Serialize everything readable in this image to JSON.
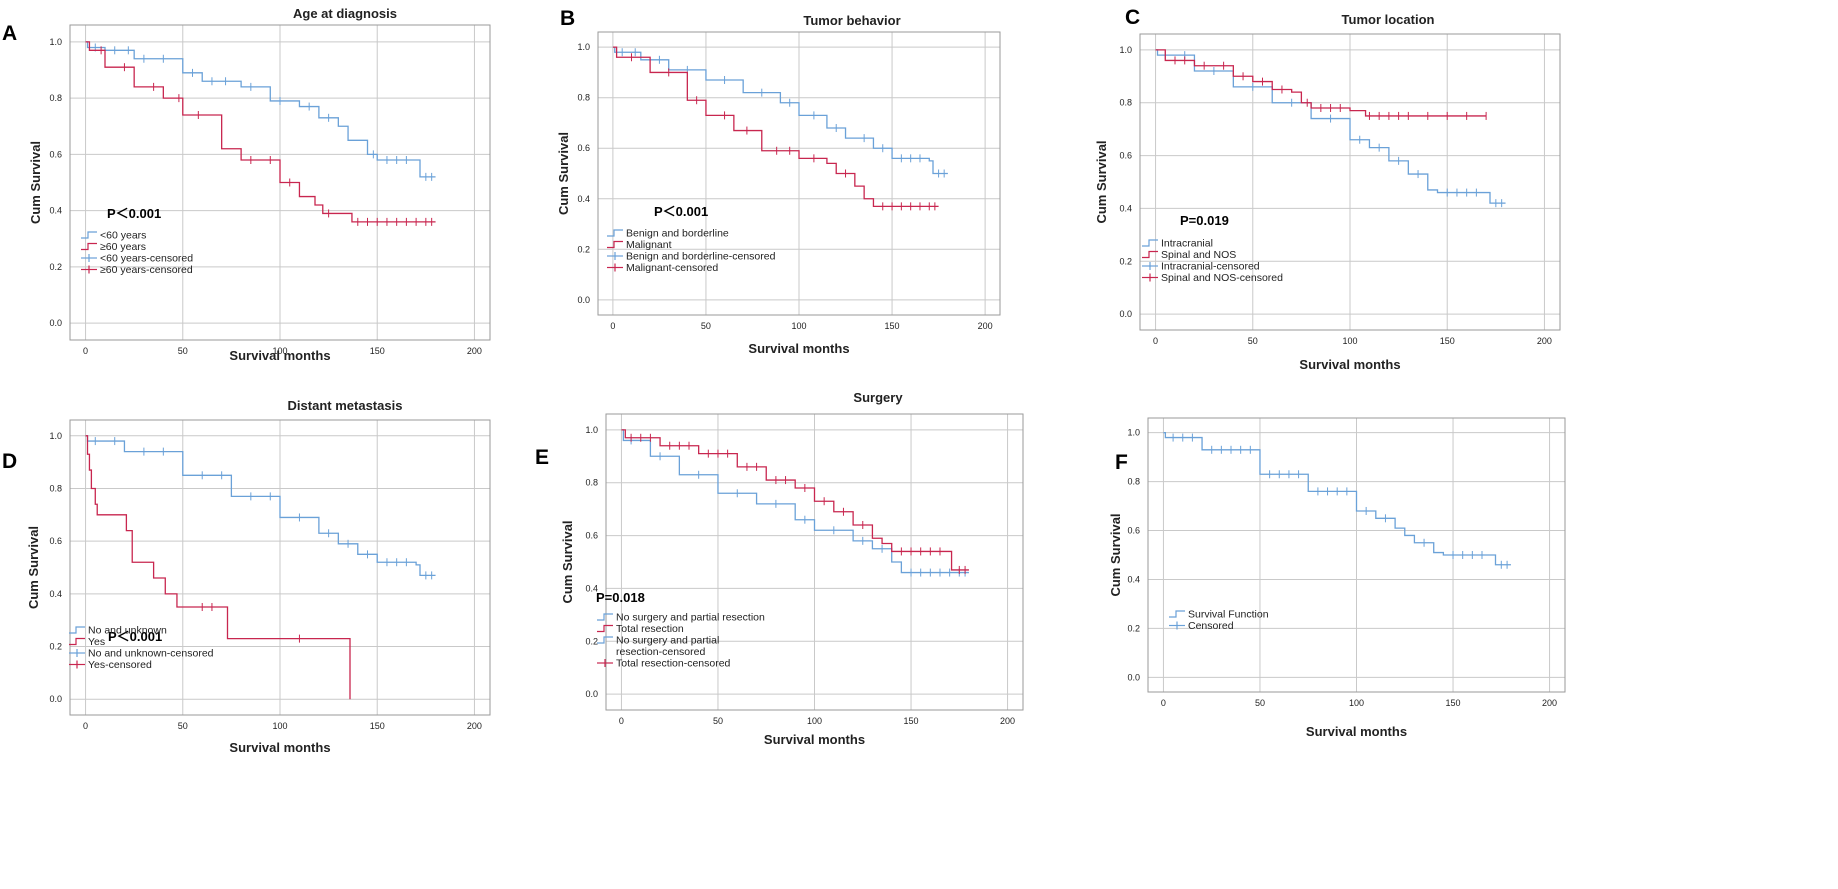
{
  "colors": {
    "blue": "#6aa1d8",
    "red": "#c8264f",
    "grid": "#c9c9c9",
    "frame": "#9a9a9a",
    "text": "#222222"
  },
  "chart_data": [
    {
      "panel": "A",
      "type": "line",
      "title": "Age at diagnosis",
      "xlabel": "Survival months",
      "ylabel": "Cum Survival",
      "xlim": [
        -8,
        208
      ],
      "ylim": [
        -0.06,
        1.06
      ],
      "xticks": [
        "0",
        "50",
        "100",
        "150",
        "200"
      ],
      "yticks": [
        "0.0",
        "0.2",
        "0.4",
        "0.6",
        "0.8",
        "1.0"
      ],
      "pvalue": "P＜0.001",
      "legend": [
        "<60 years",
        "≥60 years",
        "<60 years-censored",
        "≥60 years-censored"
      ],
      "series": [
        {
          "name": "<60 years",
          "color": "blue",
          "points": [
            [
              0,
              1
            ],
            [
              1,
              0.98
            ],
            [
              10,
              0.97
            ],
            [
              25,
              0.94
            ],
            [
              50,
              0.89
            ],
            [
              60,
              0.86
            ],
            [
              80,
              0.84
            ],
            [
              95,
              0.79
            ],
            [
              110,
              0.77
            ],
            [
              120,
              0.73
            ],
            [
              130,
              0.7
            ],
            [
              135,
              0.65
            ],
            [
              145,
              0.6
            ],
            [
              150,
              0.58
            ],
            [
              170,
              0.58
            ],
            [
              172,
              0.52
            ],
            [
              180,
              0.52
            ]
          ],
          "censored_x": [
            5,
            15,
            22,
            30,
            40,
            55,
            65,
            72,
            85,
            100,
            115,
            125,
            148,
            155,
            160,
            165,
            175,
            178
          ]
        },
        {
          "name": "≥60 years",
          "color": "red",
          "points": [
            [
              0,
              1
            ],
            [
              2,
              0.97
            ],
            [
              10,
              0.91
            ],
            [
              25,
              0.84
            ],
            [
              40,
              0.8
            ],
            [
              50,
              0.74
            ],
            [
              70,
              0.62
            ],
            [
              80,
              0.58
            ],
            [
              100,
              0.5
            ],
            [
              110,
              0.45
            ],
            [
              118,
              0.42
            ],
            [
              122,
              0.39
            ],
            [
              135,
              0.39
            ],
            [
              137,
              0.36
            ],
            [
              180,
              0.36
            ]
          ],
          "censored_x": [
            8,
            20,
            35,
            48,
            58,
            85,
            95,
            105,
            125,
            140,
            145,
            150,
            155,
            160,
            165,
            170,
            175,
            178
          ]
        }
      ]
    },
    {
      "panel": "B",
      "type": "line",
      "title": "Tumor behavior",
      "xlabel": "Survival months",
      "ylabel": "Cum Survival",
      "xlim": [
        -8,
        208
      ],
      "ylim": [
        -0.06,
        1.06
      ],
      "xticks": [
        "0",
        "50",
        "100",
        "150",
        "200"
      ],
      "yticks": [
        "0.0",
        "0.2",
        "0.4",
        "0.6",
        "0.8",
        "1.0"
      ],
      "pvalue": "P＜0.001",
      "legend": [
        "Benign and borderline",
        "Malignant",
        "Benign and borderline-censored",
        "Malignant-censored"
      ],
      "series": [
        {
          "name": "Benign and borderline",
          "color": "blue",
          "points": [
            [
              0,
              1
            ],
            [
              1,
              0.98
            ],
            [
              15,
              0.95
            ],
            [
              30,
              0.91
            ],
            [
              50,
              0.87
            ],
            [
              70,
              0.82
            ],
            [
              90,
              0.78
            ],
            [
              100,
              0.73
            ],
            [
              115,
              0.68
            ],
            [
              125,
              0.64
            ],
            [
              140,
              0.6
            ],
            [
              150,
              0.56
            ],
            [
              170,
              0.55
            ],
            [
              172,
              0.5
            ],
            [
              180,
              0.5
            ]
          ],
          "censored_x": [
            5,
            12,
            25,
            40,
            60,
            80,
            95,
            108,
            120,
            135,
            145,
            155,
            160,
            165,
            175,
            178
          ]
        },
        {
          "name": "Malignant",
          "color": "red",
          "points": [
            [
              0,
              1
            ],
            [
              2,
              0.96
            ],
            [
              20,
              0.9
            ],
            [
              40,
              0.79
            ],
            [
              50,
              0.73
            ],
            [
              65,
              0.67
            ],
            [
              80,
              0.59
            ],
            [
              100,
              0.56
            ],
            [
              115,
              0.54
            ],
            [
              120,
              0.5
            ],
            [
              130,
              0.45
            ],
            [
              135,
              0.4
            ],
            [
              140,
              0.37
            ],
            [
              175,
              0.37
            ]
          ],
          "censored_x": [
            10,
            30,
            45,
            60,
            72,
            88,
            95,
            108,
            125,
            145,
            150,
            155,
            160,
            165,
            170,
            173
          ]
        }
      ]
    },
    {
      "panel": "C",
      "type": "line",
      "title": "Tumor location",
      "xlabel": "Survival months",
      "ylabel": "Cum Survival",
      "xlim": [
        -8,
        208
      ],
      "ylim": [
        -0.06,
        1.06
      ],
      "xticks": [
        "0",
        "50",
        "100",
        "150",
        "200"
      ],
      "yticks": [
        "0.0",
        "0.2",
        "0.4",
        "0.6",
        "0.8",
        "1.0"
      ],
      "pvalue": "P=0.019",
      "legend": [
        "Intracranial",
        "Spinal and NOS",
        "Intracranial-censored",
        "Spinal and NOS-censored"
      ],
      "series": [
        {
          "name": "Intracranial",
          "color": "blue",
          "points": [
            [
              0,
              1
            ],
            [
              1,
              0.98
            ],
            [
              20,
              0.92
            ],
            [
              40,
              0.86
            ],
            [
              60,
              0.8
            ],
            [
              80,
              0.74
            ],
            [
              100,
              0.66
            ],
            [
              110,
              0.63
            ],
            [
              120,
              0.58
            ],
            [
              130,
              0.53
            ],
            [
              140,
              0.47
            ],
            [
              145,
              0.46
            ],
            [
              170,
              0.46
            ],
            [
              172,
              0.42
            ],
            [
              180,
              0.42
            ]
          ],
          "censored_x": [
            5,
            15,
            30,
            50,
            70,
            90,
            105,
            115,
            125,
            135,
            150,
            155,
            160,
            165,
            175,
            178
          ]
        },
        {
          "name": "Spinal and NOS",
          "color": "red",
          "points": [
            [
              0,
              1
            ],
            [
              5,
              0.96
            ],
            [
              20,
              0.94
            ],
            [
              40,
              0.9
            ],
            [
              50,
              0.88
            ],
            [
              60,
              0.85
            ],
            [
              70,
              0.84
            ],
            [
              75,
              0.8
            ],
            [
              80,
              0.78
            ],
            [
              100,
              0.77
            ],
            [
              108,
              0.75
            ],
            [
              170,
              0.75
            ]
          ],
          "censored_x": [
            10,
            15,
            25,
            35,
            45,
            55,
            65,
            78,
            85,
            90,
            95,
            110,
            115,
            120,
            125,
            130,
            140,
            150,
            160,
            170
          ]
        }
      ]
    },
    {
      "panel": "D",
      "type": "line",
      "title": "Distant metastasis",
      "xlabel": "Survival months",
      "ylabel": "Cum Survival",
      "xlim": [
        -8,
        208
      ],
      "ylim": [
        -0.06,
        1.06
      ],
      "xticks": [
        "0",
        "50",
        "100",
        "150",
        "200"
      ],
      "yticks": [
        "0.0",
        "0.2",
        "0.4",
        "0.6",
        "0.8",
        "1.0"
      ],
      "pvalue": "P＜0.001",
      "legend": [
        "No and unknown",
        "Yes",
        "No and unknown-censored",
        "Yes-censored"
      ],
      "series": [
        {
          "name": "No and unknown",
          "color": "blue",
          "points": [
            [
              0,
              1
            ],
            [
              1,
              0.98
            ],
            [
              20,
              0.94
            ],
            [
              50,
              0.85
            ],
            [
              75,
              0.77
            ],
            [
              100,
              0.69
            ],
            [
              120,
              0.63
            ],
            [
              130,
              0.59
            ],
            [
              140,
              0.55
            ],
            [
              150,
              0.52
            ],
            [
              170,
              0.51
            ],
            [
              172,
              0.47
            ],
            [
              180,
              0.47
            ]
          ],
          "censored_x": [
            5,
            15,
            30,
            40,
            60,
            70,
            85,
            95,
            110,
            125,
            135,
            145,
            155,
            160,
            165,
            175,
            178
          ]
        },
        {
          "name": "Yes",
          "color": "red",
          "points": [
            [
              0,
              1
            ],
            [
              1,
              0.93
            ],
            [
              2,
              0.87
            ],
            [
              3,
              0.8
            ],
            [
              5,
              0.74
            ],
            [
              6,
              0.7
            ],
            [
              21,
              0.64
            ],
            [
              24,
              0.52
            ],
            [
              35,
              0.46
            ],
            [
              41,
              0.4
            ],
            [
              47,
              0.35
            ],
            [
              73,
              0.23
            ],
            [
              136,
              0.23
            ],
            [
              136,
              0.0
            ]
          ],
          "censored_x": [
            60,
            65,
            110
          ]
        }
      ]
    },
    {
      "panel": "E",
      "type": "line",
      "title": "Surgery",
      "xlabel": "Survival months",
      "ylabel": "Cum Survival",
      "xlim": [
        -8,
        208
      ],
      "ylim": [
        -0.06,
        1.06
      ],
      "xticks": [
        "0",
        "50",
        "100",
        "150",
        "200"
      ],
      "yticks": [
        "0.0",
        "0.2",
        "0.4",
        "0.6",
        "0.8",
        "1.0"
      ],
      "pvalue": "P=0.018",
      "legend": [
        "No surgery and partial resection",
        "Total resection",
        "No surgery and partial",
        "resection-censored",
        "Total resection-censored"
      ],
      "series": [
        {
          "name": "No surgery and partial resection",
          "color": "blue",
          "points": [
            [
              0,
              1
            ],
            [
              1,
              0.96
            ],
            [
              15,
              0.9
            ],
            [
              30,
              0.83
            ],
            [
              50,
              0.76
            ],
            [
              70,
              0.72
            ],
            [
              90,
              0.66
            ],
            [
              100,
              0.62
            ],
            [
              120,
              0.58
            ],
            [
              130,
              0.55
            ],
            [
              140,
              0.5
            ],
            [
              145,
              0.46
            ],
            [
              180,
              0.46
            ]
          ],
          "censored_x": [
            5,
            20,
            40,
            60,
            80,
            95,
            110,
            125,
            135,
            150,
            155,
            160,
            165,
            170,
            175,
            178
          ]
        },
        {
          "name": "Total resection",
          "color": "red",
          "points": [
            [
              0,
              1
            ],
            [
              2,
              0.97
            ],
            [
              20,
              0.94
            ],
            [
              40,
              0.91
            ],
            [
              60,
              0.86
            ],
            [
              75,
              0.81
            ],
            [
              90,
              0.78
            ],
            [
              100,
              0.73
            ],
            [
              110,
              0.69
            ],
            [
              120,
              0.64
            ],
            [
              130,
              0.59
            ],
            [
              135,
              0.57
            ],
            [
              140,
              0.54
            ],
            [
              170,
              0.54
            ],
            [
              171,
              0.47
            ],
            [
              180,
              0.47
            ]
          ],
          "censored_x": [
            5,
            10,
            15,
            25,
            30,
            35,
            45,
            50,
            55,
            65,
            70,
            80,
            85,
            95,
            105,
            115,
            125,
            145,
            150,
            155,
            160,
            165,
            175,
            178
          ]
        }
      ]
    },
    {
      "panel": "F",
      "type": "line",
      "title": "",
      "xlabel": "Survival months",
      "ylabel": "Cum Survival",
      "xlim": [
        -8,
        208
      ],
      "ylim": [
        -0.06,
        1.06
      ],
      "xticks": [
        "0",
        "50",
        "100",
        "150",
        "200"
      ],
      "yticks": [
        "0.0",
        "0.2",
        "0.4",
        "0.6",
        "0.8",
        "1.0"
      ],
      "pvalue": "",
      "legend": [
        "Survival Function",
        "Censored"
      ],
      "series": [
        {
          "name": "Survival Function",
          "color": "blue",
          "points": [
            [
              0,
              1
            ],
            [
              1,
              0.98
            ],
            [
              20,
              0.93
            ],
            [
              50,
              0.83
            ],
            [
              75,
              0.76
            ],
            [
              100,
              0.68
            ],
            [
              110,
              0.65
            ],
            [
              120,
              0.61
            ],
            [
              125,
              0.58
            ],
            [
              130,
              0.55
            ],
            [
              140,
              0.51
            ],
            [
              145,
              0.5
            ],
            [
              170,
              0.5
            ],
            [
              172,
              0.46
            ],
            [
              180,
              0.46
            ]
          ],
          "censored_x": [
            5,
            10,
            15,
            25,
            30,
            35,
            40,
            45,
            55,
            60,
            65,
            70,
            80,
            85,
            90,
            95,
            105,
            115,
            135,
            150,
            155,
            160,
            165,
            175,
            178
          ]
        }
      ]
    }
  ]
}
